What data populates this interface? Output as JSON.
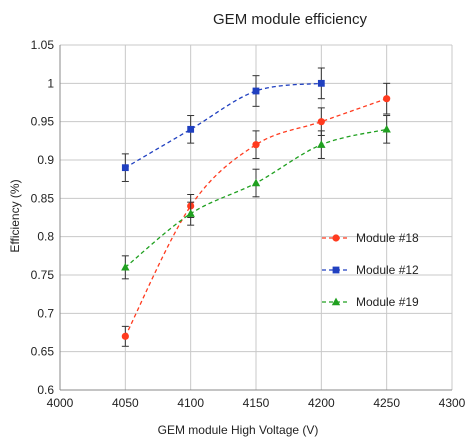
{
  "chart_data": {
    "type": "line",
    "title": "GEM module efficiency",
    "xlabel": "GEM module High Voltage (V)",
    "ylabel": "Efficiency (%)",
    "xlim": [
      4000,
      4300
    ],
    "ylim": [
      0.6,
      1.05
    ],
    "x_ticks": [
      "4000",
      "4050",
      "4100",
      "4150",
      "4200",
      "4250",
      "4300"
    ],
    "y_ticks": [
      "0.6",
      "0.65",
      "0.7",
      "0.75",
      "0.8",
      "0.85",
      "0.9",
      "0.95",
      "1",
      "1.05"
    ],
    "grid": true,
    "legend_position": "right",
    "series": [
      {
        "name": "Module #18",
        "color": "#ff3b1f",
        "marker": "circle",
        "x": [
          4050,
          4100,
          4150,
          4200,
          4250
        ],
        "y": [
          0.67,
          0.84,
          0.92,
          0.95,
          0.98
        ],
        "err": [
          0.013,
          0.015,
          0.018,
          0.018,
          0.02
        ]
      },
      {
        "name": "Module #12",
        "color": "#2040c0",
        "marker": "square",
        "x": [
          4050,
          4100,
          4150,
          4200
        ],
        "y": [
          0.89,
          0.94,
          0.99,
          1.0
        ],
        "err": [
          0.018,
          0.018,
          0.02,
          0.02
        ]
      },
      {
        "name": "Module #19",
        "color": "#20a020",
        "marker": "triangle",
        "x": [
          4050,
          4100,
          4150,
          4200,
          4250
        ],
        "y": [
          0.76,
          0.83,
          0.87,
          0.92,
          0.94
        ],
        "err": [
          0.015,
          0.015,
          0.018,
          0.018,
          0.018
        ]
      }
    ]
  }
}
